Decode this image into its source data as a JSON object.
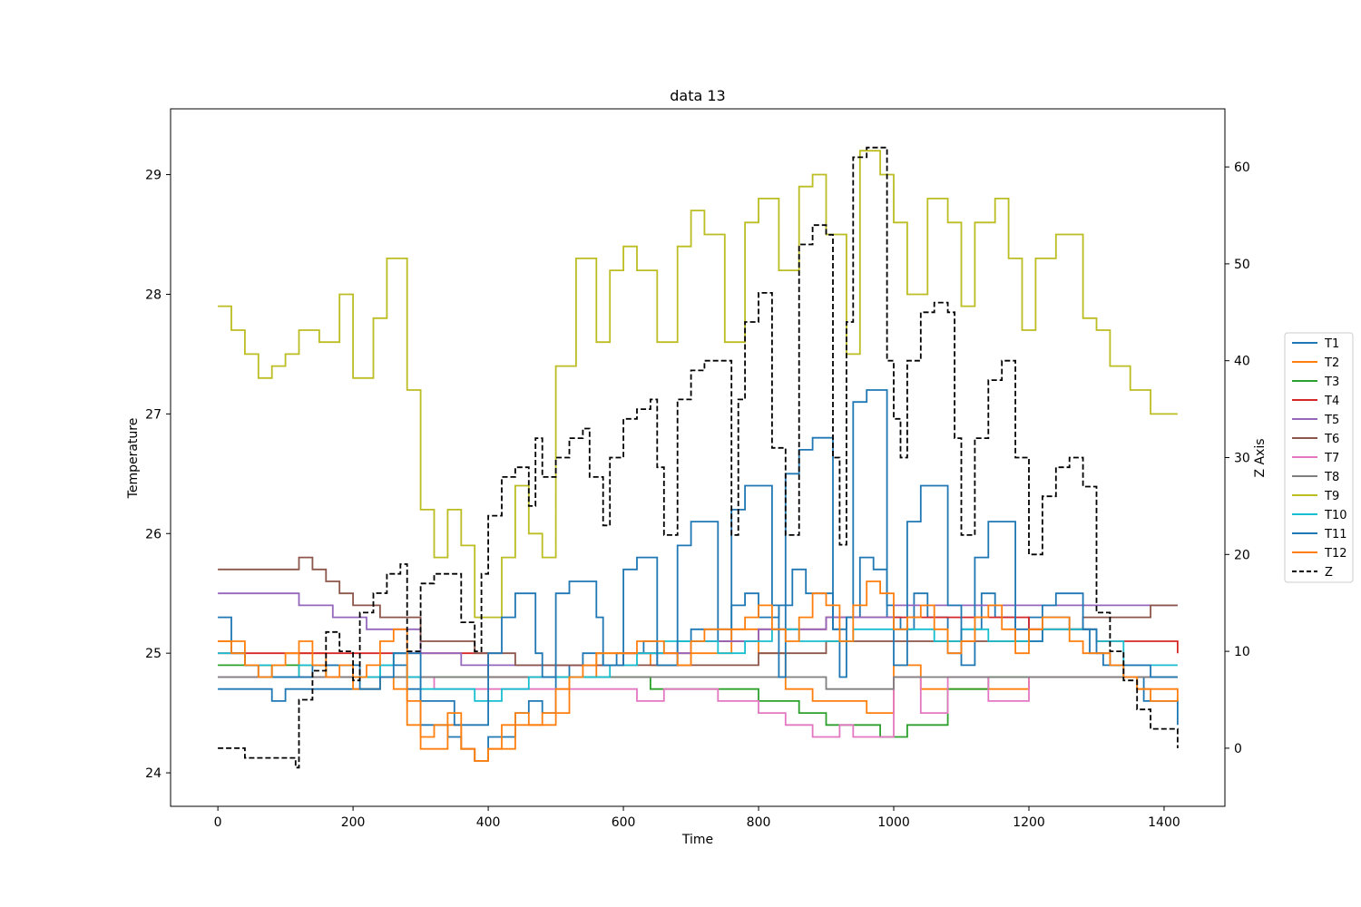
{
  "chart_data": {
    "type": "line",
    "title": "data 13",
    "xlabel": "Time",
    "ylabel": "Temperature",
    "y2label": "Z Axis",
    "xlim": [
      -70,
      1490
    ],
    "ylim": [
      23.72,
      29.55
    ],
    "y2lim": [
      -6.0,
      66.0
    ],
    "xticks": [
      "0",
      "200",
      "400",
      "600",
      "800",
      "1000",
      "1200",
      "1400"
    ],
    "yticks": [
      "24",
      "25",
      "26",
      "27",
      "28",
      "29"
    ],
    "y2ticks": [
      "0",
      "10",
      "20",
      "30",
      "40",
      "50",
      "60"
    ],
    "legend_position": "outside-right",
    "grid": false,
    "series": [
      {
        "name": "T1",
        "color": "#1f77b4",
        "axis": "left",
        "x": [
          0,
          40,
          60,
          80,
          100,
          160,
          200,
          240,
          280,
          300,
          340,
          360,
          380,
          400,
          440,
          460,
          480,
          500,
          520,
          540,
          570,
          590,
          610,
          630,
          650,
          680,
          700,
          740,
          760,
          780,
          800,
          830,
          850,
          870,
          890,
          910,
          930,
          950,
          970,
          990,
          1010,
          1030,
          1050,
          1080,
          1100,
          1130,
          1150,
          1180,
          1200,
          1240,
          1260,
          1290,
          1310,
          1340,
          1370,
          1420
        ],
        "y": [
          24.7,
          24.7,
          24.7,
          24.6,
          24.7,
          24.7,
          24.7,
          24.9,
          24.7,
          24.4,
          24.3,
          24.2,
          24.1,
          24.3,
          24.5,
          24.6,
          24.5,
          24.8,
          24.9,
          25.0,
          24.9,
          25.0,
          25.0,
          25.1,
          24.9,
          25.1,
          25.2,
          25.1,
          25.4,
          25.5,
          25.3,
          25.4,
          25.7,
          25.5,
          25.5,
          25.2,
          25.3,
          25.8,
          25.7,
          25.3,
          25.2,
          25.5,
          25.3,
          25.0,
          25.2,
          25.5,
          25.3,
          25.1,
          25.3,
          25.3,
          25.2,
          25.0,
          24.9,
          24.8,
          24.6,
          24.4
        ]
      },
      {
        "name": "T2",
        "color": "#ff7f0e",
        "axis": "left",
        "x": [
          0,
          40,
          80,
          120,
          160,
          200,
          240,
          260,
          280,
          300,
          340,
          360,
          380,
          400,
          440,
          480,
          520,
          560,
          600,
          640,
          700,
          760,
          800,
          840,
          880,
          920,
          960,
          1000,
          1040,
          1080,
          1120,
          1160,
          1200,
          1240,
          1280,
          1320,
          1360,
          1420
        ],
        "y": [
          25.1,
          24.9,
          24.8,
          25.0,
          24.8,
          24.7,
          24.8,
          24.7,
          24.4,
          24.2,
          24.4,
          24.2,
          24.1,
          24.2,
          24.4,
          24.5,
          24.8,
          25.0,
          25.0,
          24.9,
          25.0,
          25.2,
          25.0,
          24.7,
          24.6,
          24.6,
          24.5,
          24.9,
          24.7,
          24.7,
          24.7,
          24.7,
          24.8,
          24.8,
          24.8,
          24.8,
          24.7,
          24.6
        ]
      },
      {
        "name": "T3",
        "color": "#2ca02c",
        "axis": "left",
        "x": [
          0,
          80,
          160,
          240,
          320,
          400,
          480,
          560,
          640,
          720,
          800,
          860,
          900,
          940,
          980,
          1020,
          1080,
          1140,
          1200,
          1260,
          1320,
          1420
        ],
        "y": [
          24.9,
          24.9,
          24.8,
          24.8,
          24.8,
          24.8,
          24.8,
          24.8,
          24.7,
          24.7,
          24.6,
          24.5,
          24.4,
          24.4,
          24.3,
          24.4,
          24.7,
          24.8,
          24.8,
          24.8,
          24.8,
          24.8
        ]
      },
      {
        "name": "T4",
        "color": "#d62728",
        "axis": "left",
        "x": [
          0,
          100,
          200,
          300,
          400,
          500,
          600,
          700,
          800,
          900,
          1000,
          1100,
          1200,
          1300,
          1420
        ],
        "y": [
          25.0,
          25.0,
          25.0,
          25.0,
          24.8,
          24.9,
          25.0,
          25.1,
          25.2,
          25.3,
          25.3,
          25.3,
          25.2,
          25.1,
          25.0
        ]
      },
      {
        "name": "T5",
        "color": "#9467bd",
        "axis": "left",
        "x": [
          0,
          60,
          120,
          170,
          220,
          300,
          360,
          420,
          500,
          600,
          700,
          800,
          900,
          1000,
          1100,
          1200,
          1300,
          1420
        ],
        "y": [
          25.5,
          25.5,
          25.4,
          25.3,
          25.2,
          25.0,
          24.9,
          24.9,
          24.9,
          25.0,
          25.1,
          25.2,
          25.3,
          25.4,
          25.4,
          25.4,
          25.4,
          25.4
        ]
      },
      {
        "name": "T6",
        "color": "#8c564b",
        "axis": "left",
        "x": [
          0,
          90,
          120,
          140,
          160,
          180,
          200,
          240,
          300,
          380,
          440,
          520,
          600,
          700,
          800,
          900,
          1000,
          1100,
          1200,
          1280,
          1380,
          1420
        ],
        "y": [
          25.7,
          25.7,
          25.8,
          25.7,
          25.6,
          25.5,
          25.4,
          25.3,
          25.1,
          25.0,
          24.9,
          24.9,
          24.9,
          24.9,
          25.0,
          25.1,
          25.1,
          25.1,
          25.2,
          25.3,
          25.4,
          25.4
        ]
      },
      {
        "name": "T7",
        "color": "#e377c2",
        "axis": "left",
        "x": [
          0,
          120,
          240,
          320,
          400,
          480,
          560,
          620,
          660,
          740,
          800,
          840,
          880,
          920,
          940,
          980,
          1000,
          1040,
          1080,
          1140,
          1200,
          1280,
          1340,
          1420
        ],
        "y": [
          24.8,
          24.8,
          24.8,
          24.7,
          24.7,
          24.7,
          24.7,
          24.6,
          24.7,
          24.6,
          24.5,
          24.4,
          24.3,
          24.4,
          24.3,
          24.3,
          24.8,
          24.5,
          24.8,
          24.6,
          24.8,
          24.8,
          24.8,
          24.8
        ]
      },
      {
        "name": "T8",
        "color": "#7f7f7f",
        "axis": "left",
        "x": [
          0,
          200,
          400,
          600,
          800,
          900,
          940,
          1000,
          1200,
          1420
        ],
        "y": [
          24.8,
          24.8,
          24.8,
          24.8,
          24.8,
          24.7,
          24.7,
          24.8,
          24.8,
          24.8
        ]
      },
      {
        "name": "T9",
        "color": "#bcbd22",
        "axis": "left",
        "x": [
          0,
          20,
          40,
          60,
          80,
          100,
          120,
          150,
          180,
          200,
          230,
          250,
          260,
          280,
          300,
          320,
          340,
          360,
          380,
          400,
          420,
          440,
          460,
          480,
          500,
          530,
          560,
          580,
          600,
          620,
          650,
          680,
          700,
          720,
          750,
          780,
          800,
          830,
          860,
          880,
          900,
          930,
          950,
          980,
          1000,
          1020,
          1050,
          1080,
          1100,
          1120,
          1150,
          1170,
          1190,
          1210,
          1240,
          1260,
          1280,
          1300,
          1320,
          1350,
          1380,
          1420
        ],
        "y": [
          27.9,
          27.7,
          27.5,
          27.3,
          27.4,
          27.5,
          27.7,
          27.6,
          28.0,
          27.3,
          27.8,
          28.3,
          28.3,
          27.2,
          26.2,
          25.8,
          26.2,
          25.9,
          25.3,
          25.3,
          25.8,
          26.4,
          26.0,
          25.8,
          27.4,
          28.3,
          27.6,
          28.2,
          28.4,
          28.2,
          27.6,
          28.4,
          28.7,
          28.5,
          27.6,
          28.6,
          28.8,
          28.2,
          28.9,
          29.0,
          28.5,
          27.5,
          29.2,
          29.0,
          28.6,
          28.0,
          28.8,
          28.6,
          27.9,
          28.6,
          28.8,
          28.3,
          27.7,
          28.3,
          28.5,
          28.5,
          27.8,
          27.7,
          27.4,
          27.2,
          27.0,
          27.0
        ]
      },
      {
        "name": "T10",
        "color": "#17becf",
        "axis": "left",
        "x": [
          0,
          40,
          80,
          120,
          160,
          200,
          240,
          260,
          280,
          300,
          340,
          380,
          420,
          460,
          500,
          540,
          580,
          620,
          660,
          700,
          740,
          780,
          820,
          860,
          900,
          940,
          980,
          1020,
          1060,
          1100,
          1140,
          1180,
          1220,
          1260,
          1300,
          1340,
          1380,
          1420
        ],
        "y": [
          25.0,
          24.9,
          24.8,
          24.9,
          24.9,
          24.8,
          24.9,
          25.0,
          24.8,
          24.7,
          24.7,
          24.6,
          24.7,
          24.8,
          24.8,
          24.8,
          24.9,
          25.0,
          25.1,
          25.1,
          25.0,
          25.1,
          25.2,
          25.1,
          25.1,
          25.2,
          25.2,
          25.2,
          25.1,
          25.2,
          25.1,
          25.1,
          25.2,
          25.2,
          25.1,
          24.9,
          24.9,
          24.9
        ]
      },
      {
        "name": "T11",
        "color": "#1f77b4",
        "axis": "left",
        "x": [
          0,
          20,
          40,
          60,
          80,
          100,
          140,
          180,
          210,
          240,
          260,
          300,
          350,
          400,
          420,
          440,
          470,
          480,
          500,
          520,
          540,
          560,
          570,
          580,
          600,
          620,
          640,
          650,
          660,
          680,
          700,
          720,
          740,
          760,
          780,
          800,
          820,
          830,
          840,
          860,
          880,
          900,
          910,
          920,
          930,
          940,
          960,
          980,
          990,
          1000,
          1020,
          1040,
          1060,
          1080,
          1100,
          1120,
          1140,
          1160,
          1180,
          1200,
          1220,
          1240,
          1260,
          1280,
          1300,
          1320,
          1340,
          1360,
          1380,
          1420
        ],
        "y": [
          25.3,
          25.0,
          24.9,
          24.8,
          24.8,
          24.8,
          24.9,
          24.9,
          24.7,
          24.8,
          25.0,
          24.6,
          24.4,
          25.0,
          25.3,
          25.5,
          25.0,
          24.8,
          25.5,
          25.6,
          25.6,
          25.3,
          24.9,
          24.9,
          25.7,
          25.8,
          25.8,
          24.9,
          24.9,
          25.9,
          26.1,
          26.1,
          25.2,
          26.2,
          26.4,
          26.4,
          25.4,
          24.8,
          26.5,
          26.7,
          26.8,
          26.8,
          25.2,
          24.8,
          25.3,
          27.1,
          27.2,
          27.2,
          25.4,
          24.9,
          26.1,
          26.4,
          26.4,
          25.4,
          24.9,
          25.8,
          26.1,
          26.1,
          25.2,
          25.1,
          25.4,
          25.5,
          25.5,
          25.2,
          25.0,
          24.9,
          24.9,
          24.9,
          24.8,
          24.8
        ]
      },
      {
        "name": "T12",
        "color": "#ff7f0e",
        "axis": "left",
        "x": [
          0,
          20,
          40,
          60,
          80,
          100,
          120,
          140,
          160,
          180,
          200,
          220,
          240,
          260,
          280,
          300,
          320,
          340,
          360,
          380,
          400,
          420,
          440,
          460,
          480,
          500,
          520,
          540,
          560,
          580,
          600,
          620,
          640,
          660,
          680,
          700,
          720,
          740,
          760,
          780,
          800,
          820,
          840,
          860,
          880,
          900,
          920,
          940,
          960,
          980,
          1000,
          1020,
          1040,
          1060,
          1080,
          1100,
          1120,
          1140,
          1160,
          1180,
          1200,
          1220,
          1240,
          1260,
          1280,
          1300,
          1320,
          1340,
          1360,
          1380,
          1420
        ],
        "y": [
          25.1,
          25.0,
          24.9,
          24.8,
          24.9,
          25.0,
          25.1,
          24.9,
          24.8,
          24.9,
          24.8,
          24.9,
          25.1,
          25.2,
          24.6,
          24.3,
          24.4,
          24.5,
          24.2,
          24.1,
          24.2,
          24.4,
          24.5,
          24.4,
          24.4,
          24.7,
          24.8,
          24.9,
          25.0,
          25.0,
          25.0,
          25.1,
          25.1,
          25.0,
          24.9,
          25.1,
          25.2,
          25.2,
          25.2,
          25.3,
          25.4,
          25.2,
          25.1,
          25.3,
          25.5,
          25.4,
          25.1,
          25.4,
          25.6,
          25.5,
          25.2,
          25.3,
          25.4,
          25.2,
          25.0,
          25.1,
          25.3,
          25.4,
          25.2,
          25.0,
          25.2,
          25.3,
          25.3,
          25.1,
          25.0,
          25.0,
          24.9,
          24.8,
          24.7,
          24.6,
          24.6
        ]
      },
      {
        "name": "Z",
        "color": "#000000",
        "axis": "right",
        "dashed": true,
        "x": [
          0,
          20,
          40,
          60,
          80,
          100,
          115,
          120,
          140,
          160,
          180,
          200,
          210,
          230,
          250,
          270,
          280,
          300,
          320,
          340,
          360,
          380,
          390,
          400,
          420,
          440,
          460,
          470,
          480,
          500,
          520,
          540,
          550,
          560,
          570,
          580,
          600,
          620,
          640,
          650,
          660,
          680,
          700,
          720,
          740,
          760,
          770,
          780,
          800,
          810,
          820,
          840,
          860,
          880,
          900,
          910,
          920,
          930,
          940,
          960,
          980,
          990,
          1000,
          1010,
          1020,
          1040,
          1060,
          1080,
          1090,
          1100,
          1120,
          1140,
          1160,
          1180,
          1200,
          1220,
          1240,
          1260,
          1280,
          1300,
          1320,
          1340,
          1360,
          1380,
          1420
        ],
        "y": [
          0,
          0,
          -1,
          -1,
          -1,
          -1,
          -2,
          5,
          8,
          12,
          10,
          7,
          14,
          16,
          18,
          19,
          10,
          17,
          18,
          18,
          13,
          10,
          18,
          24,
          28,
          29,
          25,
          32,
          28,
          30,
          32,
          33,
          28,
          28,
          23,
          30,
          34,
          35,
          36,
          29,
          22,
          36,
          39,
          40,
          40,
          22,
          36,
          44,
          47,
          47,
          31,
          22,
          52,
          54,
          53,
          30,
          21,
          44,
          61,
          62,
          62,
          40,
          34,
          30,
          40,
          45,
          46,
          45,
          32,
          22,
          32,
          38,
          40,
          30,
          20,
          26,
          29,
          30,
          27,
          14,
          10,
          7,
          4,
          2,
          0
        ]
      }
    ]
  }
}
